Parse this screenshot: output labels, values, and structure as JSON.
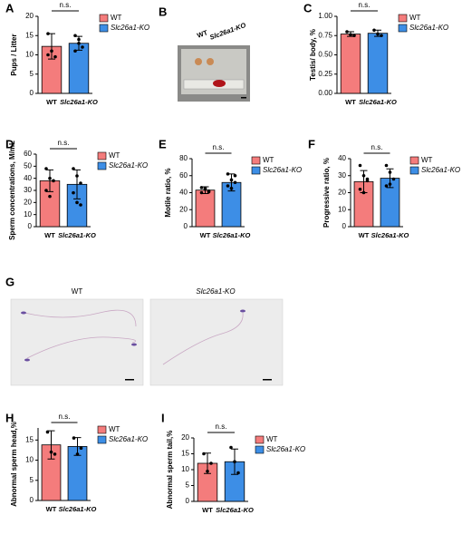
{
  "chart_data": [
    {
      "panel": "A",
      "type": "bar",
      "title": "n.s.",
      "ylabel": "Pups / Litter",
      "categories": [
        "WT",
        "Slc26a1-KO"
      ],
      "colors": [
        "#f47c7c",
        "#3d8ee6"
      ],
      "values": [
        12.2,
        13.0
      ],
      "errors": [
        3.3,
        1.8
      ],
      "points": [
        [
          15.5,
          11,
          9.5,
          10
        ],
        [
          15,
          13,
          12,
          11,
          14
        ]
      ],
      "ylim": [
        0,
        20
      ],
      "yticks": [
        0,
        5,
        10,
        15,
        20
      ]
    },
    {
      "panel": "C",
      "type": "bar",
      "title": "n.s.",
      "ylabel": "Testis/ body, %",
      "categories": [
        "WT",
        "Slc26a1-KO"
      ],
      "colors": [
        "#f47c7c",
        "#3d8ee6"
      ],
      "values": [
        0.77,
        0.78
      ],
      "errors": [
        0.03,
        0.04
      ],
      "points": [
        [
          0.8,
          0.76,
          0.75
        ],
        [
          0.82,
          0.77,
          0.75
        ]
      ],
      "ylim": [
        0,
        1
      ],
      "yticks": [
        {
          "value": 0,
          "label": "0.00"
        },
        {
          "value": 0.25,
          "label": "0.25"
        },
        {
          "value": 0.5,
          "label": "0.50"
        },
        {
          "value": 0.75,
          "label": "0.75"
        },
        {
          "value": 1,
          "label": "1.00"
        }
      ]
    },
    {
      "panel": "D",
      "type": "bar",
      "title": "n.s.",
      "ylabel": "Sperm concentrations, M/mL",
      "categories": [
        "WT",
        "Slc26a1-KO"
      ],
      "colors": [
        "#f47c7c",
        "#3d8ee6"
      ],
      "values": [
        38,
        35
      ],
      "errors": [
        9,
        12
      ],
      "points": [
        [
          48,
          40,
          38,
          30,
          25
        ],
        [
          48,
          42,
          36,
          28,
          20,
          18
        ]
      ],
      "ylim": [
        0,
        60
      ],
      "yticks": [
        0,
        10,
        20,
        30,
        40,
        50,
        60
      ]
    },
    {
      "panel": "E",
      "type": "bar",
      "title": "n.s.",
      "ylabel": "Motile ratio, %",
      "categories": [
        "WT",
        "Slc26a1-KO"
      ],
      "colors": [
        "#f47c7c",
        "#3d8ee6"
      ],
      "values": [
        43,
        52
      ],
      "errors": [
        4,
        10
      ],
      "points": [
        [
          46,
          44,
          42,
          40,
          45,
          41
        ],
        [
          62,
          55,
          52,
          48,
          45,
          60
        ]
      ],
      "ylim": [
        0,
        80
      ],
      "yticks": [
        0,
        20,
        40,
        60,
        80
      ]
    },
    {
      "panel": "F",
      "type": "bar",
      "title": "n.s.",
      "ylabel": "Progressive ratio, %",
      "categories": [
        "WT",
        "Slc26a1-KO"
      ],
      "colors": [
        "#f47c7c",
        "#3d8ee6"
      ],
      "values": [
        26.5,
        28.5
      ],
      "errors": [
        6.5,
        5.5
      ],
      "points": [
        [
          36,
          30,
          27,
          22,
          20,
          28
        ],
        [
          36,
          32,
          28,
          24,
          25
        ]
      ],
      "ylim": [
        0,
        40
      ],
      "yticks": [
        0,
        10,
        20,
        30,
        40
      ]
    },
    {
      "panel": "H",
      "type": "bar",
      "title": "n.s.",
      "ylabel": "Abnormal sperm head,%",
      "categories": [
        "WT",
        "Slc26a1-KO"
      ],
      "colors": [
        "#f47c7c",
        "#3d8ee6"
      ],
      "values": [
        13.8,
        13.4
      ],
      "errors": [
        3.5,
        2.2
      ],
      "points": [
        [
          17,
          12,
          11.5
        ],
        [
          15.5,
          11.5,
          13
        ]
      ],
      "ylim": [
        0,
        18
      ],
      "yticks": [
        0,
        5,
        10,
        15
      ]
    },
    {
      "panel": "I",
      "type": "bar",
      "title": "n.s.",
      "ylabel": "Abnormal sperm tail,%",
      "categories": [
        "WT",
        "Slc26a1-KO"
      ],
      "colors": [
        "#f47c7c",
        "#3d8ee6"
      ],
      "values": [
        12,
        12.5
      ],
      "errors": [
        3.2,
        4
      ],
      "points": [
        [
          15,
          9.5,
          12
        ],
        [
          17,
          12.5,
          9
        ]
      ],
      "ylim": [
        0,
        20
      ],
      "yticks": [
        0,
        5,
        10,
        15,
        20
      ]
    }
  ],
  "images": [
    {
      "panel": "B",
      "labels": [
        "WT",
        "Slc26a1-KO"
      ]
    },
    {
      "panel": "G",
      "labels": [
        "WT",
        "Slc26a1-KO"
      ]
    }
  ]
}
